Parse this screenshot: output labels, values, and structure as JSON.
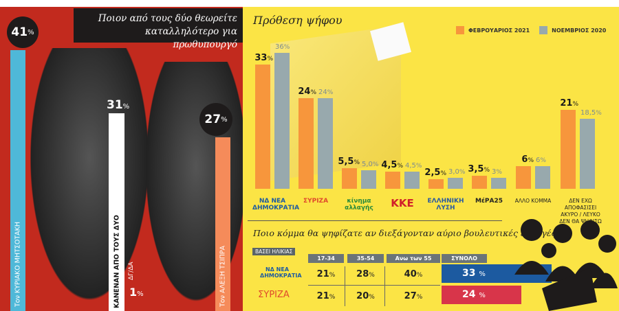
{
  "pm_panel": {
    "title": "Ποιον από τους δύο θεωρείτε καταλληλότερο για πρωθυπουργό",
    "items": [
      {
        "label": "Τον ΚΥΡΙΑΚΟ ΜΗΤΣΟΤΑΚΗ",
        "value": "41",
        "color": "#4fb8d8"
      },
      {
        "label": "ΚΑΝΕΝΑΝ ΑΠΟ ΤΟΥΣ ΔΥΟ",
        "value": "31",
        "color": "#ffffff"
      },
      {
        "label": "ΔΓ/ΔΑ",
        "value": "1",
        "color": "#ffffff"
      },
      {
        "label": "Τον ΑΛΕΞΗ ΤΣΙΠΡΑ",
        "value": "27",
        "color": "#f58b5a"
      }
    ],
    "pct": "%"
  },
  "chart_data": {
    "type": "bar",
    "title": "Πρόθεση ψήφου",
    "categories": [
      "ΝΔ",
      "ΣΥΡΙΖΑ",
      "ΚΙΝΑΛ",
      "ΚΚΕ",
      "ΕΛΛΗΝΙΚΗ ΛΥΣΗ",
      "ΜέΡΑ25",
      "ΑΛΛΟ ΚΟΜΜΑ",
      "ΔΕΝ ΕΧΩ ΑΠΟΦΑΣΙΣΕΙ ΑΚΥΡΟ / ΛΕΥΚΟ ΔΕΝ ΘΑ ΨΗΦΙΣΩ"
    ],
    "category_labels": [
      "ΝΔ ΝΕΑ ΔΗΜΟΚΡΑΤΙΑ",
      "ΣΥΡΙΖΑ",
      "κίνημα αλλαγής",
      "ΚΚΕ",
      "ΕΛΛΗΝΙΚΗ ΛΥΣΗ",
      "ΜέΡΑ25",
      "ΑΛΛΟ ΚΟΜΜΑ",
      "ΔΕΝ ΕΧΩ ΑΠΟΦΑΣΙΣΕΙ ΑΚΥΡΟ / ΛΕΥΚΟ ΔΕΝ ΘΑ ΨΗΦΙΣΩ"
    ],
    "series": [
      {
        "name": "ΦΕΒΡΟΥΑΡΙΟΣ 2021",
        "color": "#f7963c",
        "values": [
          33,
          24,
          5.5,
          4.5,
          2.5,
          3.5,
          6,
          21
        ],
        "labels": [
          "33",
          "24",
          "5,5",
          "4,5",
          "2,5",
          "3,5",
          "6",
          "21"
        ]
      },
      {
        "name": "ΝΟΕΜΒΡΙΟΣ 2020",
        "color": "#98a9ad",
        "values": [
          36,
          24,
          5.0,
          4.5,
          3.0,
          3,
          6,
          18.5
        ],
        "labels": [
          "36",
          "24",
          "5,0",
          "4,5",
          "3,0",
          "3",
          "6",
          "18,5"
        ]
      }
    ],
    "ylim": [
      0,
      36
    ],
    "legend": "top-right",
    "grid": false
  },
  "age_table": {
    "question": "Ποιο κόμμα θα ψηφίζατε αν διεξάγονταν αύριο βουλευτικές εκλογές;",
    "tag": "ΒΑΣΕΙ ΗΛΙΚΙΑΣ",
    "headers": [
      "17-34",
      "35-54",
      "Ανω των 55",
      "ΣΥΝΟΛΟ"
    ],
    "rows": [
      {
        "party": "ΝΔ ΝΕΑ ΔΗΜΟΚΡΑΤΙΑ",
        "values": [
          "21",
          "28",
          "40"
        ],
        "total": "33",
        "color": "#1c5aa0"
      },
      {
        "party": "ΣΥΡΙΖΑ",
        "values": [
          "21",
          "20",
          "27"
        ],
        "total": "24",
        "color": "#d8354a"
      }
    ]
  }
}
